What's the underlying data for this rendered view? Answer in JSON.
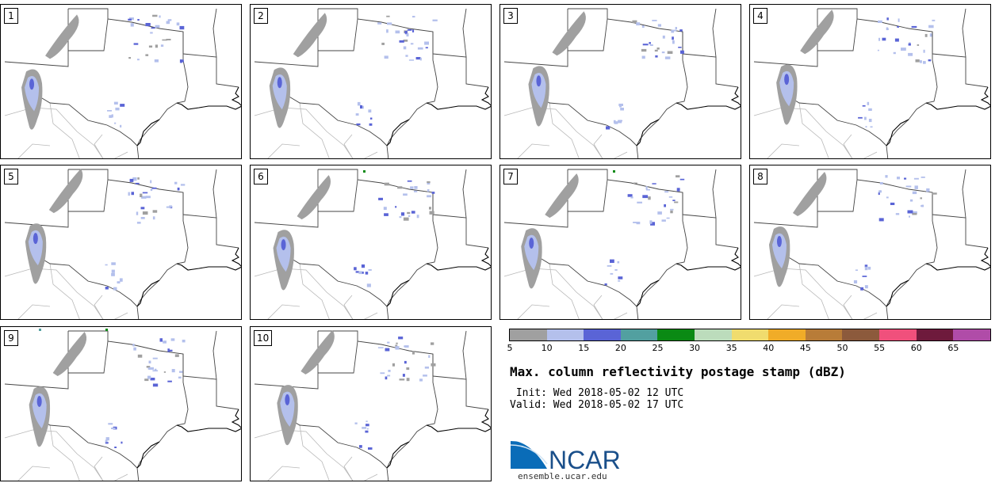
{
  "panels": [
    {
      "label": "1"
    },
    {
      "label": "2"
    },
    {
      "label": "3"
    },
    {
      "label": "4"
    },
    {
      "label": "5"
    },
    {
      "label": "6"
    },
    {
      "label": "7"
    },
    {
      "label": "8"
    },
    {
      "label": "9"
    },
    {
      "label": "10"
    }
  ],
  "colorbar": {
    "colors": [
      "#a0a0a0",
      "#b4c0ec",
      "#5a64d6",
      "#52a0a0",
      "#0a8a14",
      "#bcdcbc",
      "#f0dc6e",
      "#f0ac28",
      "#b87c38",
      "#8c5a3c",
      "#f0507c",
      "#6e1a3c",
      "#b04ca8"
    ],
    "ticks": [
      "5",
      "10",
      "15",
      "20",
      "25",
      "30",
      "35",
      "40",
      "45",
      "50",
      "55",
      "60",
      "65"
    ]
  },
  "title": "Max. column reflectivity postage stamp (dBZ)",
  "init": " Init: Wed 2018-05-02 12 UTC",
  "valid": "Valid: Wed 2018-05-02 17 UTC",
  "logo": {
    "text": "NCAR",
    "url": "ensemble.ucar.edu",
    "color": "#1a4f8a"
  }
}
